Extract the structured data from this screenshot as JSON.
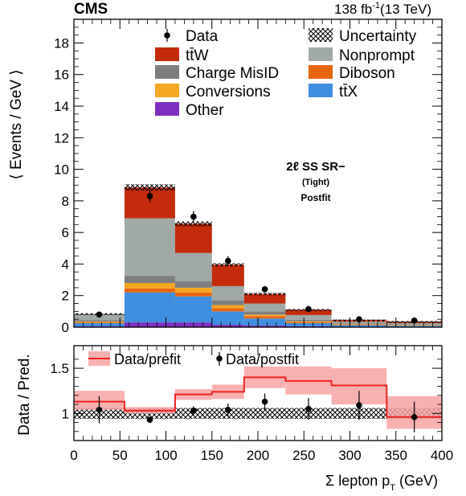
{
  "header": {
    "experiment": "CMS",
    "lumi": "138 fb",
    "lumi_sup": "-1",
    "lumi_energy": "(13 TeV)"
  },
  "annotations": {
    "region": "2ℓ SS SR−",
    "selection": "(Tight)",
    "fit": "Postfit"
  },
  "colors": {
    "ttW": "#c42b0c",
    "charge_misid": "#7c7e80",
    "conversions": "#f5a623",
    "other": "#7e2fbf",
    "nonprompt": "#a0a9a6",
    "diboson": "#e8650f",
    "ttX": "#3f8fe0",
    "ratio_prefit_line": "#ee2222",
    "ratio_prefit_band": "#f7a3a3"
  },
  "chart_data": [
    {
      "type": "bar",
      "stacked": true,
      "ylabel": "⟨ Events / GeV ⟩",
      "xlim": [
        0,
        400
      ],
      "ylim": [
        0,
        19.5
      ],
      "yticks": [
        0,
        2,
        4,
        6,
        8,
        10,
        12,
        14,
        16,
        18
      ],
      "bin_edges": [
        0,
        55,
        110,
        150,
        185,
        230,
        280,
        340,
        400
      ],
      "legend": {
        "left": [
          {
            "key": "data",
            "label": "Data"
          },
          {
            "key": "ttW",
            "label": "tt̄W"
          },
          {
            "key": "charge_misid",
            "label": "Charge MisID"
          },
          {
            "key": "conversions",
            "label": "Conversions"
          },
          {
            "key": "other",
            "label": "Other"
          }
        ],
        "right": [
          {
            "key": "uncertainty",
            "label": "Uncertainty"
          },
          {
            "key": "nonprompt",
            "label": "Nonprompt"
          },
          {
            "key": "diboson",
            "label": "Diboson"
          },
          {
            "key": "ttX",
            "label": "tt̄X"
          }
        ]
      },
      "series": [
        {
          "key": "other",
          "values": [
            0.05,
            0.3,
            0.3,
            0.15,
            0.1,
            0.05,
            0.03,
            0.02
          ]
        },
        {
          "key": "ttX",
          "values": [
            0.2,
            1.9,
            1.65,
            0.85,
            0.45,
            0.2,
            0.1,
            0.07
          ]
        },
        {
          "key": "diboson",
          "values": [
            0.05,
            0.25,
            0.25,
            0.2,
            0.15,
            0.07,
            0.04,
            0.03
          ]
        },
        {
          "key": "conversions",
          "values": [
            0.05,
            0.35,
            0.3,
            0.2,
            0.1,
            0.05,
            0.03,
            0.02
          ]
        },
        {
          "key": "charge_misid",
          "values": [
            0.1,
            0.45,
            0.4,
            0.3,
            0.2,
            0.1,
            0.05,
            0.04
          ]
        },
        {
          "key": "nonprompt",
          "values": [
            0.4,
            3.65,
            1.8,
            0.9,
            0.5,
            0.3,
            0.1,
            0.08
          ]
        },
        {
          "key": "ttW",
          "values": [
            0.0,
            1.95,
            1.85,
            1.35,
            0.6,
            0.33,
            0.1,
            0.09
          ]
        }
      ],
      "uncertainty_halfwidth": [
        0.04,
        0.2,
        0.15,
        0.1,
        0.08,
        0.05,
        0.04,
        0.04
      ],
      "data_points": {
        "x": [
          27.5,
          82.5,
          130,
          167.5,
          207.5,
          255,
          310,
          370
        ],
        "y": [
          0.8,
          8.3,
          7.0,
          4.2,
          2.4,
          1.15,
          0.5,
          0.42
        ],
        "err": [
          0.12,
          0.4,
          0.35,
          0.3,
          0.2,
          0.13,
          0.08,
          0.07
        ]
      }
    },
    {
      "type": "line",
      "ylabel": "Data / Pred.",
      "xlabel": "Σ lepton p",
      "xlabel_sub": "T",
      "xlabel_unit": " (GeV)",
      "xlim": [
        0,
        400
      ],
      "ylim": [
        0.7,
        1.75
      ],
      "yticks": [
        1,
        1.5
      ],
      "ytick_labels": [
        "1",
        "1.5"
      ],
      "xticks": [
        0,
        50,
        100,
        150,
        200,
        250,
        300,
        350,
        400
      ],
      "legend": [
        {
          "key": "prefit",
          "label": "Data/prefit"
        },
        {
          "key": "postfit",
          "label": "Data/postfit"
        }
      ],
      "bin_edges": [
        0,
        55,
        110,
        150,
        185,
        230,
        280,
        340,
        400
      ],
      "prefit_ratio": [
        1.13,
        1.03,
        1.21,
        1.24,
        1.4,
        1.36,
        1.31,
        0.96
      ],
      "prefit_band_low": [
        1.04,
        1.0,
        1.15,
        1.16,
        1.28,
        1.21,
        1.1,
        0.83
      ],
      "prefit_band_high": [
        1.25,
        1.07,
        1.27,
        1.32,
        1.52,
        1.52,
        1.5,
        1.19
      ],
      "postfit_uncertainty_band": [
        0.94,
        1.06
      ],
      "postfit_points": {
        "x": [
          27.5,
          82.5,
          130,
          167.5,
          207.5,
          255,
          310,
          370
        ],
        "y": [
          1.04,
          0.93,
          1.03,
          1.04,
          1.13,
          1.05,
          1.09,
          0.96
        ],
        "err": [
          0.15,
          0.03,
          0.05,
          0.07,
          0.09,
          0.12,
          0.16,
          0.17
        ]
      }
    }
  ]
}
